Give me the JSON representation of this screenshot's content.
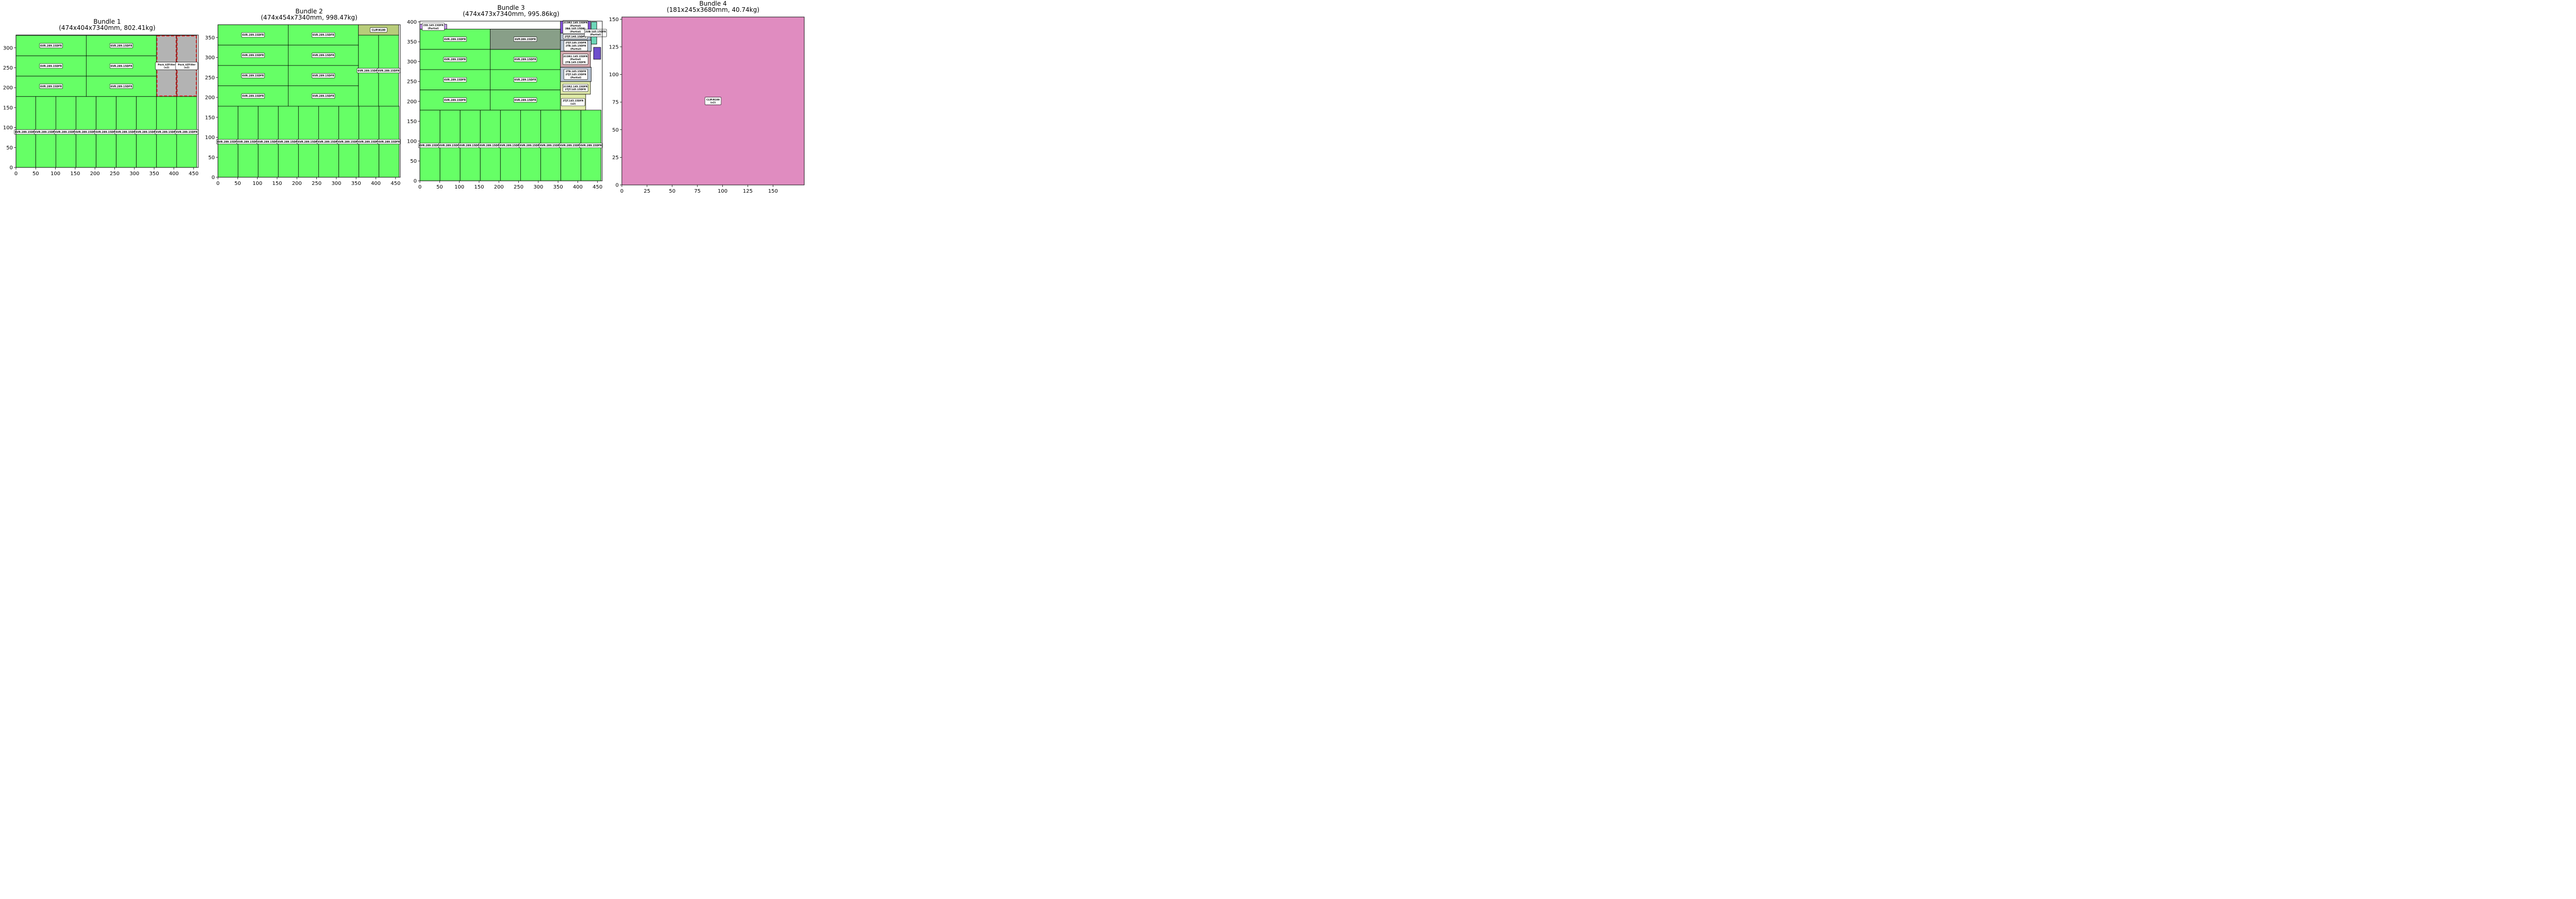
{
  "chart_data": [
    {
      "type": "packing-layout",
      "title": "Bundle 1",
      "subtitle": "(474x404x7340mm, 802.41kg)",
      "xlim": [
        0,
        462
      ],
      "ylim": [
        0,
        332
      ],
      "xticks": [
        0,
        50,
        100,
        150,
        200,
        250,
        300,
        350,
        400,
        450
      ],
      "yticks": [
        0,
        50,
        100,
        150,
        200,
        250,
        300
      ],
      "grid": false,
      "items": [
        {
          "x": 0,
          "y": 0,
          "w": 50,
          "h": 178,
          "label": "6VR.289.15DFR",
          "color": "#66ff66",
          "vertical": true
        },
        {
          "x": 50,
          "y": 0,
          "w": 51,
          "h": 178,
          "label": "6VR.289.15DFR",
          "color": "#66ff66",
          "vertical": true
        },
        {
          "x": 101,
          "y": 0,
          "w": 51,
          "h": 178,
          "label": "6VR.289.15DFR",
          "color": "#66ff66",
          "vertical": true
        },
        {
          "x": 152,
          "y": 0,
          "w": 51,
          "h": 178,
          "label": "6VR.289.15DFR",
          "color": "#66ff66",
          "vertical": true
        },
        {
          "x": 203,
          "y": 0,
          "w": 51,
          "h": 178,
          "label": "6VR.289.15DFR",
          "color": "#66ff66",
          "vertical": true
        },
        {
          "x": 254,
          "y": 0,
          "w": 51,
          "h": 178,
          "label": "6VR.289.15DFR",
          "color": "#66ff66",
          "vertical": true
        },
        {
          "x": 305,
          "y": 0,
          "w": 51,
          "h": 178,
          "label": "6VR.289.15DFR",
          "color": "#66ff66",
          "vertical": true
        },
        {
          "x": 356,
          "y": 0,
          "w": 51,
          "h": 178,
          "label": "6VR.289.15DFR",
          "color": "#66ff66",
          "vertical": true
        },
        {
          "x": 407,
          "y": 0,
          "w": 51,
          "h": 178,
          "label": "6VR.289.15DFR",
          "color": "#66ff66",
          "vertical": true
        },
        {
          "x": 0,
          "y": 178,
          "w": 178,
          "h": 51,
          "label": "6VR.289.15DFR",
          "color": "#66ff66"
        },
        {
          "x": 178,
          "y": 178,
          "w": 178,
          "h": 51,
          "label": "6VR.289.15DFR",
          "color": "#66ff66"
        },
        {
          "x": 0,
          "y": 229,
          "w": 178,
          "h": 51,
          "label": "6VR.289.15DFR",
          "color": "#66ff66"
        },
        {
          "x": 178,
          "y": 229,
          "w": 178,
          "h": 51,
          "label": "6VR.289.15DFR",
          "color": "#66ff66"
        },
        {
          "x": 0,
          "y": 280,
          "w": 178,
          "h": 51,
          "label": "6VR.289.15DFR",
          "color": "#66ff66"
        },
        {
          "x": 178,
          "y": 280,
          "w": 178,
          "h": 51,
          "label": "6VR.289.15DFR",
          "color": "#66ff66"
        },
        {
          "x": 356,
          "y": 178,
          "w": 51,
          "h": 153,
          "label": "Pack_6ZFiller",
          "sub": "(x2)",
          "color": "#b3b3b3",
          "filler": true,
          "vertical": true
        },
        {
          "x": 407,
          "y": 178,
          "w": 51,
          "h": 153,
          "label": "Pack_6ZFiller",
          "sub": "(x2)",
          "color": "#b3b3b3",
          "filler": true,
          "vertical": true
        }
      ]
    },
    {
      "type": "packing-layout",
      "title": "Bundle 2",
      "subtitle": "(474x454x7340mm, 998.47kg)",
      "xlim": [
        0,
        462
      ],
      "ylim": [
        0,
        382
      ],
      "xticks": [
        0,
        50,
        100,
        150,
        200,
        250,
        300,
        350,
        400,
        450
      ],
      "yticks": [
        0,
        50,
        100,
        150,
        200,
        250,
        300,
        350
      ],
      "grid": false,
      "items": [
        {
          "x": 0,
          "y": 0,
          "w": 51,
          "h": 178,
          "label": "6VR.289.15DFR",
          "color": "#66ff66",
          "vertical": true
        },
        {
          "x": 51,
          "y": 0,
          "w": 51,
          "h": 178,
          "label": "6VR.289.15DFR",
          "color": "#66ff66",
          "vertical": true
        },
        {
          "x": 102,
          "y": 0,
          "w": 51,
          "h": 178,
          "label": "6VR.289.15DFR",
          "color": "#66ff66",
          "vertical": true
        },
        {
          "x": 153,
          "y": 0,
          "w": 51,
          "h": 178,
          "label": "6VR.289.15DFR",
          "color": "#66ff66",
          "vertical": true
        },
        {
          "x": 204,
          "y": 0,
          "w": 51,
          "h": 178,
          "label": "6VR.289.15DFR",
          "color": "#66ff66",
          "vertical": true
        },
        {
          "x": 255,
          "y": 0,
          "w": 51,
          "h": 178,
          "label": "6VR.289.15DFR",
          "color": "#66ff66",
          "vertical": true
        },
        {
          "x": 306,
          "y": 0,
          "w": 51,
          "h": 178,
          "label": "6VR.289.15DFR",
          "color": "#66ff66",
          "vertical": true
        },
        {
          "x": 357,
          "y": 0,
          "w": 51,
          "h": 178,
          "label": "6VR.289.15DFR",
          "color": "#66ff66",
          "vertical": true
        },
        {
          "x": 408,
          "y": 0,
          "w": 51,
          "h": 178,
          "label": "6VR.289.15DFR",
          "color": "#66ff66",
          "vertical": true
        },
        {
          "x": 0,
          "y": 178,
          "w": 178,
          "h": 51,
          "label": "6VR.289.15DFR",
          "color": "#66ff66"
        },
        {
          "x": 178,
          "y": 178,
          "w": 178,
          "h": 51,
          "label": "6VR.289.15DFR",
          "color": "#66ff66"
        },
        {
          "x": 0,
          "y": 229,
          "w": 178,
          "h": 51,
          "label": "6VR.289.15DFR",
          "color": "#66ff66"
        },
        {
          "x": 178,
          "y": 229,
          "w": 178,
          "h": 51,
          "label": "6VR.289.15DFR",
          "color": "#66ff66"
        },
        {
          "x": 0,
          "y": 280,
          "w": 178,
          "h": 51,
          "label": "6VR.289.15DFR",
          "color": "#66ff66"
        },
        {
          "x": 178,
          "y": 280,
          "w": 178,
          "h": 51,
          "label": "6VR.289.15DFR",
          "color": "#66ff66"
        },
        {
          "x": 0,
          "y": 331,
          "w": 178,
          "h": 51,
          "label": "6VR.289.15DFR",
          "color": "#66ff66"
        },
        {
          "x": 178,
          "y": 331,
          "w": 178,
          "h": 51,
          "label": "6VR.289.15DFR",
          "color": "#66ff66"
        },
        {
          "x": 356,
          "y": 178,
          "w": 51,
          "h": 178,
          "label": "6VR.289.15DFR",
          "color": "#66ff66",
          "vertical": true
        },
        {
          "x": 407,
          "y": 178,
          "w": 51,
          "h": 178,
          "label": "6VR.289.15DFR",
          "color": "#66ff66",
          "vertical": true
        },
        {
          "x": 356,
          "y": 356,
          "w": 102,
          "h": 26,
          "label": "CLIP.N100",
          "color": "#b8cc7a"
        }
      ]
    },
    {
      "type": "packing-layout",
      "title": "Bundle 3",
      "subtitle": "(474x473x7340mm, 995.86kg)",
      "xlim": [
        0,
        462
      ],
      "ylim": [
        0,
        402
      ],
      "xticks": [
        0,
        50,
        100,
        150,
        200,
        250,
        300,
        350,
        400,
        450
      ],
      "yticks": [
        0,
        50,
        100,
        150,
        200,
        250,
        300,
        350,
        400
      ],
      "grid": false,
      "items": [
        {
          "x": 0,
          "y": 0,
          "w": 51,
          "h": 178,
          "label": "6VR.289.15DFR",
          "color": "#66ff66",
          "vertical": true
        },
        {
          "x": 51,
          "y": 0,
          "w": 51,
          "h": 178,
          "label": "6VR.289.15DFR",
          "color": "#66ff66",
          "vertical": true
        },
        {
          "x": 102,
          "y": 0,
          "w": 51,
          "h": 178,
          "label": "6VR.289.15DFR",
          "color": "#66ff66",
          "vertical": true
        },
        {
          "x": 153,
          "y": 0,
          "w": 51,
          "h": 178,
          "label": "6VR.289.15DFR",
          "color": "#66ff66",
          "vertical": true
        },
        {
          "x": 204,
          "y": 0,
          "w": 51,
          "h": 178,
          "label": "6VR.289.15DFR",
          "color": "#66ff66",
          "vertical": true
        },
        {
          "x": 255,
          "y": 0,
          "w": 51,
          "h": 178,
          "label": "6VR.289.15DFR",
          "color": "#66ff66",
          "vertical": true
        },
        {
          "x": 306,
          "y": 0,
          "w": 51,
          "h": 178,
          "label": "6VR.289.15DFR",
          "color": "#66ff66",
          "vertical": true
        },
        {
          "x": 357,
          "y": 0,
          "w": 51,
          "h": 178,
          "label": "6VR.289.15DFR",
          "color": "#66ff66",
          "vertical": true
        },
        {
          "x": 408,
          "y": 0,
          "w": 51,
          "h": 178,
          "label": "6VR.289.15DFR",
          "color": "#66ff66",
          "vertical": true
        },
        {
          "x": 0,
          "y": 178,
          "w": 178,
          "h": 51,
          "label": "6VR.289.15DFR",
          "color": "#66ff66"
        },
        {
          "x": 178,
          "y": 178,
          "w": 178,
          "h": 51,
          "label": "6VR.289.15DFR",
          "color": "#66ff66"
        },
        {
          "x": 0,
          "y": 229,
          "w": 178,
          "h": 51,
          "label": "6VR.289.15DFR",
          "color": "#66ff66"
        },
        {
          "x": 178,
          "y": 229,
          "w": 178,
          "h": 51,
          "label": "6VR.289.15DFR",
          "color": "#66ff66"
        },
        {
          "x": 0,
          "y": 280,
          "w": 178,
          "h": 51,
          "label": "6VR.289.15DFR",
          "color": "#66ff66"
        },
        {
          "x": 178,
          "y": 280,
          "w": 178,
          "h": 51,
          "label": "6VR.289.15DFR",
          "color": "#66ff66"
        },
        {
          "x": 0,
          "y": 331,
          "w": 178,
          "h": 51,
          "label": "6VR.289.15DFR",
          "color": "#66ff66"
        },
        {
          "x": 178,
          "y": 331,
          "w": 178,
          "h": 51,
          "label": "6VR.289.15DFR",
          "color": "#66ff66"
        },
        {
          "x": 0,
          "y": 382,
          "w": 68,
          "h": 12,
          "label": "2SS.145.15DFR",
          "sub": "(Partial)",
          "color": "#c999f0"
        },
        {
          "x": 356,
          "y": 178,
          "w": 64,
          "h": 40,
          "label": "2TJT.145.15DFR",
          "sub": "(x2)",
          "color": "#e0eba8"
        },
        {
          "x": 356,
          "y": 218,
          "w": 76,
          "h": 32,
          "label": "2COR2.145.15DFR",
          "sub": "2TJT.145.15DFR",
          "color": "#dfe8aa"
        },
        {
          "x": 356,
          "y": 250,
          "w": 78,
          "h": 36,
          "label": "2TB.145.15DFR",
          "sub": "2TJT.145.15DFR",
          "sub2": "(Partial)",
          "color": "#b8c4d4"
        },
        {
          "x": 356,
          "y": 286,
          "w": 76,
          "h": 40,
          "label": "2COR1.145.15DFR",
          "sub": "(Partial)",
          "sub2": "2TB.145.15DFR",
          "color": "#d4aab0"
        },
        {
          "x": 356,
          "y": 326,
          "w": 78,
          "h": 28,
          "label": "2TJT.145.15DFR",
          "sub": "2TB.145.15DFR",
          "sub2": "(Partial)",
          "color": "#b8c4d4"
        },
        {
          "x": 356,
          "y": 354,
          "w": 76,
          "h": 18,
          "label": "2TJT.145.15DFR",
          "color": "#b8c4d4"
        },
        {
          "x": 356,
          "y": 372,
          "w": 76,
          "h": 30,
          "label": "2COR2.145.15DFR",
          "sub": "(Partial)",
          "sub2": "2BA.145.15DBL",
          "sub3": "(Partial)",
          "color": "#8855dd"
        },
        {
          "x": 434,
          "y": 344,
          "w": 14,
          "h": 56,
          "label": "",
          "color": "#6dd6b8"
        },
        {
          "x": 440,
          "y": 306,
          "w": 18,
          "h": 30,
          "label": "",
          "color": "#6e4fcc"
        },
        {
          "x": 428,
          "y": 365,
          "w": 34,
          "h": 14,
          "label": "2UB.145.15DFR",
          "sub": "(Partial)",
          "color": "#ffffff",
          "labelOnly": true
        },
        {
          "x": 178,
          "y": 331,
          "w": 178,
          "h": 51,
          "label": "6VP.289.15DFR",
          "color": "#889f88",
          "override": true
        }
      ]
    },
    {
      "type": "packing-layout",
      "title": "Bundle 4",
      "subtitle": "(181x245x3680mm, 40.74kg)",
      "xlim": [
        0,
        181
      ],
      "ylim": [
        0,
        152
      ],
      "xticks": [
        0,
        25,
        50,
        75,
        100,
        125,
        150
      ],
      "yticks": [
        0,
        25,
        50,
        75,
        100,
        125,
        150
      ],
      "grid": false,
      "items": [
        {
          "x": 0,
          "y": 0,
          "w": 181,
          "h": 152,
          "label": "CLIP.N100",
          "sub": "(x2)",
          "color": "#e08cc0",
          "noborder": true
        }
      ]
    }
  ]
}
